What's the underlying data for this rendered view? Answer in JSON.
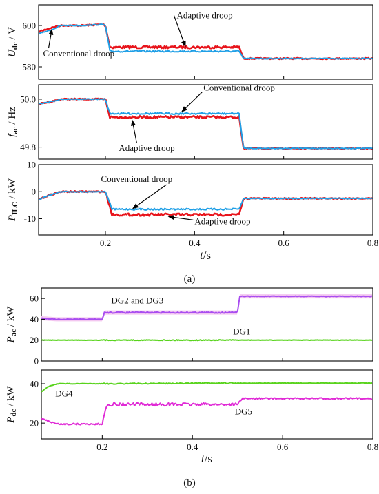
{
  "figure": {
    "caption_a": "(a)",
    "caption_b": "(b)"
  },
  "colors": {
    "conventional": "#1f9fe6",
    "adaptive": "#e8141b",
    "dg23": "#a84df0",
    "dg23_band": "#f3c6f0",
    "dg1": "#58d31c",
    "dg4": "#58d31c",
    "dg5": "#e02ad6",
    "frame": "#000000"
  },
  "chart_data": [
    {
      "type": "line",
      "ylabel_main": "U",
      "ylabel_sub": "dc",
      "ylabel_unit": " / V",
      "xlim": [
        0.05,
        0.8
      ],
      "ylim": [
        574,
        610
      ],
      "yticks": [
        580,
        600
      ],
      "ytick_labels": [
        "580",
        "600"
      ],
      "xticks": [
        0.2,
        0.4,
        0.6,
        0.8
      ],
      "xtick_labels": [
        "",
        "",
        "",
        ""
      ],
      "annotations": [
        {
          "text": "Adaptive droop",
          "x": 0.36,
          "y": 603.5,
          "arrow_x": 0.38,
          "arrow_y": 589.5
        },
        {
          "text": "Conventional droop",
          "x": 0.06,
          "y": 585.0,
          "arrow_x": 0.08,
          "arrow_y": 598.5
        }
      ],
      "series": [
        {
          "name": "Conventional droop",
          "x": [
            0.05,
            0.08,
            0.1,
            0.15,
            0.195,
            0.2,
            0.21,
            0.49,
            0.5,
            0.51,
            0.8
          ],
          "y": [
            596.0,
            598.0,
            600.0,
            600.0,
            600.5,
            600.0,
            587.5,
            587.5,
            587.5,
            584.0,
            584.0
          ]
        },
        {
          "name": "Adaptive droop",
          "x": [
            0.05,
            0.08,
            0.1,
            0.15,
            0.195,
            0.2,
            0.21,
            0.49,
            0.5,
            0.51,
            0.8
          ],
          "y": [
            597.0,
            599.0,
            600.0,
            600.0,
            600.5,
            600.0,
            589.5,
            589.5,
            589.5,
            584.0,
            584.0
          ]
        }
      ]
    },
    {
      "type": "line",
      "ylabel_main": "f",
      "ylabel_sub": "ac",
      "ylabel_unit": " / Hz",
      "xlim": [
        0.05,
        0.8
      ],
      "ylim": [
        49.75,
        50.06
      ],
      "yticks": [
        49.8,
        50.0
      ],
      "ytick_labels": [
        "49.8",
        "50.0"
      ],
      "xticks": [
        0.2,
        0.4,
        0.6,
        0.8
      ],
      "xtick_labels": [
        "",
        "",
        "",
        ""
      ],
      "annotations": [
        {
          "text": "Conventional droop",
          "x": 0.42,
          "y": 50.035,
          "arrow_x": 0.37,
          "arrow_y": 49.945
        },
        {
          "text": "Adaptive droop",
          "x": 0.23,
          "y": 49.785,
          "arrow_x": 0.26,
          "arrow_y": 49.915
        }
      ],
      "series": [
        {
          "name": "Conventional droop",
          "x": [
            0.05,
            0.08,
            0.1,
            0.15,
            0.195,
            0.2,
            0.21,
            0.49,
            0.5,
            0.51,
            0.8
          ],
          "y": [
            49.98,
            49.99,
            50.0,
            50.0,
            50.0,
            50.0,
            49.94,
            49.94,
            49.94,
            49.795,
            49.795
          ]
        },
        {
          "name": "Adaptive droop",
          "x": [
            0.05,
            0.08,
            0.1,
            0.15,
            0.195,
            0.2,
            0.21,
            0.49,
            0.5,
            0.51,
            0.8
          ],
          "y": [
            49.98,
            49.99,
            50.0,
            50.0,
            50.0,
            50.0,
            49.925,
            49.925,
            49.925,
            49.795,
            49.795
          ]
        }
      ]
    },
    {
      "type": "line",
      "ylabel_main": "P",
      "ylabel_sub": "ILC",
      "ylabel_unit": " / kW",
      "xlim": [
        0.05,
        0.8
      ],
      "ylim": [
        -16,
        10
      ],
      "yticks": [
        -10,
        0,
        10
      ],
      "ytick_labels": [
        "-10",
        "0",
        "10"
      ],
      "xticks": [
        0.2,
        0.4,
        0.6,
        0.8
      ],
      "xtick_labels": [
        "0.2",
        "0.4",
        "0.6",
        "0.8"
      ],
      "xlabel_main": "t",
      "xlabel_unit": "/s",
      "annotations": [
        {
          "text": "Conventional droop",
          "x": 0.19,
          "y": 3.6,
          "arrow_x": 0.26,
          "arrow_y": -6.4
        },
        {
          "text": "Adaptive droop",
          "x": 0.4,
          "y": -12.0,
          "arrow_x": 0.34,
          "arrow_y": -9.2
        }
      ],
      "series": [
        {
          "name": "Conventional droop",
          "x": [
            0.05,
            0.07,
            0.1,
            0.15,
            0.195,
            0.2,
            0.215,
            0.49,
            0.5,
            0.51,
            0.8
          ],
          "y": [
            -3.0,
            -1.5,
            0.0,
            0.0,
            0.0,
            0.0,
            -6.5,
            -6.5,
            -6.5,
            -2.5,
            -2.5
          ]
        },
        {
          "name": "Adaptive droop",
          "x": [
            0.05,
            0.07,
            0.1,
            0.15,
            0.195,
            0.2,
            0.215,
            0.49,
            0.5,
            0.51,
            0.8
          ],
          "y": [
            -3.0,
            -1.5,
            0.0,
            0.0,
            0.0,
            0.0,
            -8.5,
            -8.5,
            -8.5,
            -2.5,
            -2.5
          ]
        }
      ]
    },
    {
      "type": "line",
      "ylabel_main": "P",
      "ylabel_sub": "ac",
      "ylabel_unit": " / kW",
      "xlim": [
        0.065,
        0.8
      ],
      "ylim": [
        0,
        70
      ],
      "yticks": [
        0,
        20,
        40,
        60
      ],
      "ytick_labels": [
        "0",
        "20",
        "40",
        "60"
      ],
      "xticks": [
        0.2,
        0.4,
        0.6,
        0.8
      ],
      "xtick_labels": [
        "",
        "",
        "",
        ""
      ],
      "annotations": [
        {
          "text": "DG2 and DG3",
          "x": 0.22,
          "y": 55.0
        },
        {
          "text": "DG1",
          "x": 0.49,
          "y": 25.5
        }
      ],
      "series": [
        {
          "name": "DG2 and DG3",
          "x": [
            0.065,
            0.1,
            0.19,
            0.2,
            0.205,
            0.49,
            0.5,
            0.505,
            0.8
          ],
          "y": [
            41.0,
            40.0,
            40.0,
            40.0,
            46.5,
            46.5,
            46.5,
            62.0,
            62.0
          ]
        },
        {
          "name": "DG1",
          "x": [
            0.065,
            0.8
          ],
          "y": [
            20.0,
            20.0
          ]
        }
      ]
    },
    {
      "type": "line",
      "ylabel_main": "P",
      "ylabel_sub": "dc",
      "ylabel_unit": " / kW",
      "xlim": [
        0.065,
        0.8
      ],
      "ylim": [
        12,
        47
      ],
      "yticks": [
        20,
        40
      ],
      "ytick_labels": [
        "20",
        "40"
      ],
      "xticks": [
        0.2,
        0.4,
        0.6,
        0.8
      ],
      "xtick_labels": [
        "0.2",
        "0.4",
        "0.6",
        "0.8"
      ],
      "xlabel_main": "t",
      "xlabel_unit": "/s",
      "annotations": [
        {
          "text": "DG4",
          "x": 0.096,
          "y": 33.5
        },
        {
          "text": "DG5",
          "x": 0.494,
          "y": 24.5
        }
      ],
      "series": [
        {
          "name": "DG4",
          "x": [
            0.065,
            0.08,
            0.1,
            0.2,
            0.5,
            0.8
          ],
          "y": [
            36.0,
            38.5,
            40.0,
            40.0,
            40.3,
            40.3
          ]
        },
        {
          "name": "DG5",
          "x": [
            0.065,
            0.08,
            0.1,
            0.19,
            0.2,
            0.21,
            0.49,
            0.5,
            0.51,
            0.8
          ],
          "y": [
            22.5,
            21.0,
            19.5,
            19.5,
            19.5,
            29.5,
            29.5,
            29.5,
            32.5,
            32.5
          ]
        }
      ]
    }
  ]
}
